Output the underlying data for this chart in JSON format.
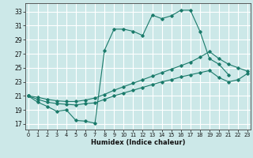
{
  "xlabel": "Humidex (Indice chaleur)",
  "bg_color": "#cce8e8",
  "grid_color": "#ffffff",
  "line_color": "#1a7a6a",
  "x_ticks": [
    0,
    1,
    2,
    3,
    4,
    5,
    6,
    7,
    8,
    9,
    10,
    11,
    12,
    13,
    14,
    15,
    16,
    17,
    18,
    19,
    20,
    21,
    22,
    23
  ],
  "y_ticks": [
    17,
    19,
    21,
    23,
    25,
    27,
    29,
    31,
    33
  ],
  "xlim": [
    -0.3,
    23.3
  ],
  "ylim": [
    16.2,
    34.2
  ],
  "line1_x": [
    0,
    1,
    2,
    3,
    4,
    5,
    6,
    7,
    8,
    9,
    10,
    11,
    12,
    13,
    14,
    15,
    16,
    17,
    18,
    19,
    20,
    21
  ],
  "line1_y": [
    21.0,
    20.1,
    19.5,
    18.8,
    19.0,
    17.5,
    17.4,
    17.1,
    27.5,
    30.5,
    30.5,
    30.2,
    29.6,
    32.5,
    32.0,
    32.4,
    33.2,
    33.2,
    30.2,
    26.3,
    25.5,
    24.0
  ],
  "line2_x": [
    0,
    1,
    2,
    3,
    4,
    5,
    6,
    7,
    8,
    9,
    10,
    11,
    12,
    13,
    14,
    15,
    16,
    17,
    18,
    19,
    20,
    21,
    22,
    23
  ],
  "line2_y": [
    21.0,
    20.8,
    20.5,
    20.3,
    20.2,
    20.2,
    20.4,
    20.7,
    21.2,
    21.8,
    22.3,
    22.8,
    23.3,
    23.8,
    24.3,
    24.8,
    25.3,
    25.8,
    26.5,
    27.3,
    26.3,
    25.5,
    25.0,
    24.5
  ],
  "line3_x": [
    0,
    1,
    2,
    3,
    4,
    5,
    6,
    7,
    8,
    9,
    10,
    11,
    12,
    13,
    14,
    15,
    16,
    17,
    18,
    19,
    20,
    21,
    22,
    23
  ],
  "line3_y": [
    21.0,
    20.5,
    20.1,
    19.9,
    19.8,
    19.7,
    19.9,
    20.0,
    20.5,
    21.0,
    21.4,
    21.8,
    22.2,
    22.6,
    23.0,
    23.3,
    23.7,
    24.0,
    24.3,
    24.6,
    23.6,
    23.0,
    23.3,
    24.2
  ]
}
